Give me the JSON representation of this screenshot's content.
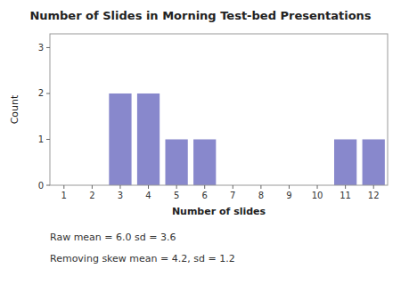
{
  "chart_data": {
    "type": "bar",
    "title": "Number of Slides in Morning Test-bed Presentations",
    "xlabel": "Number of slides",
    "ylabel": "Count",
    "x": [
      3,
      4,
      5,
      6,
      11,
      12
    ],
    "values": [
      2,
      2,
      1,
      1,
      1,
      1
    ],
    "color": "#8888cc",
    "xlim": [
      0.5,
      12.5
    ],
    "xticks": [
      1,
      2,
      3,
      4,
      5,
      6,
      7,
      8,
      9,
      10,
      11,
      12
    ],
    "ylim": [
      0,
      3.3
    ],
    "yticks": [
      0,
      1,
      2,
      3
    ],
    "grid": false,
    "annotations": [
      "Raw mean = 6.0  sd = 3.6",
      "Removing skew mean = 4.2, sd = 1.2"
    ]
  }
}
